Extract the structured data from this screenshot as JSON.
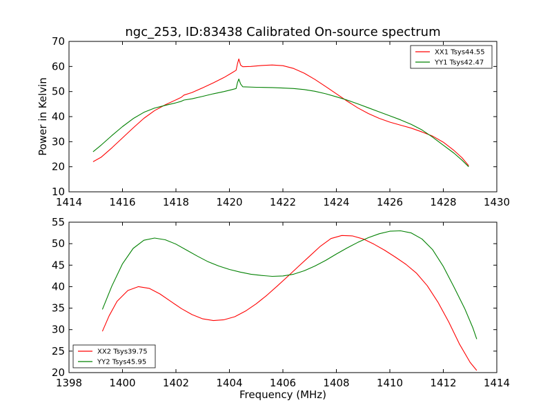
{
  "title": "ngc_253, ID:83438 Calibrated On-source spectrum",
  "chart_data": [
    {
      "type": "line",
      "xlim": [
        1414,
        1430
      ],
      "ylim": [
        10,
        70
      ],
      "xticks": [
        1414,
        1416,
        1418,
        1420,
        1422,
        1424,
        1426,
        1428,
        1430
      ],
      "yticks": [
        10,
        20,
        30,
        40,
        50,
        60,
        70
      ],
      "ylabel": "Power in Kelvin",
      "xlabel": "",
      "legend": "top-right",
      "series": [
        {
          "name": "XX1 Tsys44.55",
          "color": "#ff0000",
          "points": [
            [
              1414.9,
              22
            ],
            [
              1415.2,
              23.8
            ],
            [
              1415.6,
              27.5
            ],
            [
              1416,
              31.5
            ],
            [
              1416.4,
              35.5
            ],
            [
              1416.8,
              39.3
            ],
            [
              1417.2,
              42.4
            ],
            [
              1417.6,
              44.7
            ],
            [
              1418,
              46.7
            ],
            [
              1418.2,
              47.7
            ],
            [
              1418.3,
              48.6
            ],
            [
              1418.6,
              49.6
            ],
            [
              1419,
              51.5
            ],
            [
              1419.4,
              53.5
            ],
            [
              1419.8,
              55.6
            ],
            [
              1420.1,
              57.5
            ],
            [
              1420.25,
              58.5
            ],
            [
              1420.3,
              61
            ],
            [
              1420.35,
              63
            ],
            [
              1420.42,
              60.5
            ],
            [
              1420.5,
              59.9
            ],
            [
              1420.8,
              60
            ],
            [
              1421.2,
              60.4
            ],
            [
              1421.6,
              60.6
            ],
            [
              1422,
              60.3
            ],
            [
              1422.4,
              59.2
            ],
            [
              1422.8,
              57.3
            ],
            [
              1423.2,
              54.8
            ],
            [
              1423.6,
              52
            ],
            [
              1424,
              49.1
            ],
            [
              1424.4,
              46.2
            ],
            [
              1424.8,
              43.5
            ],
            [
              1425.2,
              41.2
            ],
            [
              1425.6,
              39.3
            ],
            [
              1426,
              37.8
            ],
            [
              1426.4,
              36.6
            ],
            [
              1426.8,
              35.4
            ],
            [
              1427.2,
              33.9
            ],
            [
              1427.6,
              32.2
            ],
            [
              1428,
              29.8
            ],
            [
              1428.4,
              26.5
            ],
            [
              1428.7,
              23.6
            ],
            [
              1428.95,
              20.4
            ]
          ]
        },
        {
          "name": "YY1 Tsys42.47",
          "color": "#008000",
          "points": [
            [
              1414.9,
              26
            ],
            [
              1415.2,
              28.6
            ],
            [
              1415.6,
              32.4
            ],
            [
              1416,
              36
            ],
            [
              1416.4,
              39.2
            ],
            [
              1416.8,
              41.7
            ],
            [
              1417.2,
              43.4
            ],
            [
              1417.6,
              44.5
            ],
            [
              1418,
              45.5
            ],
            [
              1418.2,
              46.1
            ],
            [
              1418.3,
              46.6
            ],
            [
              1418.6,
              47.1
            ],
            [
              1419,
              48.1
            ],
            [
              1419.4,
              49.1
            ],
            [
              1419.8,
              50
            ],
            [
              1420.1,
              50.8
            ],
            [
              1420.25,
              51.2
            ],
            [
              1420.3,
              53.5
            ],
            [
              1420.35,
              55
            ],
            [
              1420.42,
              53
            ],
            [
              1420.5,
              51.9
            ],
            [
              1421,
              51.7
            ],
            [
              1421.6,
              51.6
            ],
            [
              1422,
              51.4
            ],
            [
              1422.4,
              51.2
            ],
            [
              1422.8,
              50.8
            ],
            [
              1423.2,
              50.1
            ],
            [
              1423.6,
              49.1
            ],
            [
              1424,
              47.9
            ],
            [
              1424.4,
              46.6
            ],
            [
              1424.8,
              45.1
            ],
            [
              1425.2,
              43.5
            ],
            [
              1425.6,
              41.9
            ],
            [
              1426,
              40.3
            ],
            [
              1426.4,
              38.7
            ],
            [
              1426.8,
              36.9
            ],
            [
              1427.2,
              34.7
            ],
            [
              1427.6,
              31.8
            ],
            [
              1428,
              28.6
            ],
            [
              1428.4,
              25.4
            ],
            [
              1428.7,
              22.6
            ],
            [
              1428.95,
              20
            ]
          ]
        }
      ]
    },
    {
      "type": "line",
      "xlim": [
        1398,
        1414
      ],
      "ylim": [
        20,
        55
      ],
      "xticks": [
        1398,
        1400,
        1402,
        1404,
        1406,
        1408,
        1410,
        1412,
        1414
      ],
      "yticks": [
        20,
        25,
        30,
        35,
        40,
        45,
        50,
        55
      ],
      "ylabel": "",
      "xlabel": "Frequency (MHz)",
      "legend": "bottom-left",
      "series": [
        {
          "name": "XX2 Tsys39.75",
          "color": "#ff0000",
          "points": [
            [
              1399.25,
              29.6
            ],
            [
              1399.5,
              33.2
            ],
            [
              1399.8,
              36.6
            ],
            [
              1400.2,
              39.1
            ],
            [
              1400.6,
              40
            ],
            [
              1401,
              39.6
            ],
            [
              1401.4,
              38.3
            ],
            [
              1401.8,
              36.6
            ],
            [
              1402.2,
              34.9
            ],
            [
              1402.6,
              33.5
            ],
            [
              1403,
              32.5
            ],
            [
              1403.4,
              32.1
            ],
            [
              1403.8,
              32.3
            ],
            [
              1404.2,
              33
            ],
            [
              1404.6,
              34.3
            ],
            [
              1405,
              36
            ],
            [
              1405.4,
              38
            ],
            [
              1405.8,
              40.2
            ],
            [
              1406.2,
              42.5
            ],
            [
              1406.6,
              44.8
            ],
            [
              1407,
              47.1
            ],
            [
              1407.4,
              49.4
            ],
            [
              1407.8,
              51.2
            ],
            [
              1408.2,
              51.9
            ],
            [
              1408.6,
              51.8
            ],
            [
              1409,
              51.1
            ],
            [
              1409.4,
              49.9
            ],
            [
              1409.8,
              48.5
            ],
            [
              1410.2,
              46.9
            ],
            [
              1410.6,
              45.2
            ],
            [
              1411,
              43.1
            ],
            [
              1411.4,
              40.2
            ],
            [
              1411.8,
              36.4
            ],
            [
              1412.2,
              31.8
            ],
            [
              1412.6,
              26.7
            ],
            [
              1413,
              22.4
            ],
            [
              1413.25,
              20.5
            ]
          ]
        },
        {
          "name": "YY2 Tsys45.95",
          "color": "#008000",
          "points": [
            [
              1399.25,
              34.7
            ],
            [
              1399.6,
              40.1
            ],
            [
              1400,
              45.3
            ],
            [
              1400.4,
              48.9
            ],
            [
              1400.8,
              50.8
            ],
            [
              1401.2,
              51.3
            ],
            [
              1401.6,
              50.9
            ],
            [
              1402,
              49.9
            ],
            [
              1402.4,
              48.5
            ],
            [
              1402.8,
              47.1
            ],
            [
              1403.2,
              45.8
            ],
            [
              1403.6,
              44.8
            ],
            [
              1404,
              44
            ],
            [
              1404.4,
              43.4
            ],
            [
              1404.8,
              42.9
            ],
            [
              1405.2,
              42.6
            ],
            [
              1405.6,
              42.4
            ],
            [
              1406,
              42.5
            ],
            [
              1406.4,
              42.9
            ],
            [
              1406.8,
              43.7
            ],
            [
              1407.2,
              44.8
            ],
            [
              1407.6,
              46.1
            ],
            [
              1408,
              47.6
            ],
            [
              1408.4,
              49
            ],
            [
              1408.8,
              50.3
            ],
            [
              1409.2,
              51.4
            ],
            [
              1409.6,
              52.3
            ],
            [
              1410,
              52.9
            ],
            [
              1410.4,
              53
            ],
            [
              1410.8,
              52.5
            ],
            [
              1411.2,
              51.1
            ],
            [
              1411.6,
              48.6
            ],
            [
              1412,
              44.7
            ],
            [
              1412.4,
              39.9
            ],
            [
              1412.8,
              34.9
            ],
            [
              1413.1,
              30.5
            ],
            [
              1413.25,
              27.8
            ]
          ]
        }
      ]
    }
  ]
}
